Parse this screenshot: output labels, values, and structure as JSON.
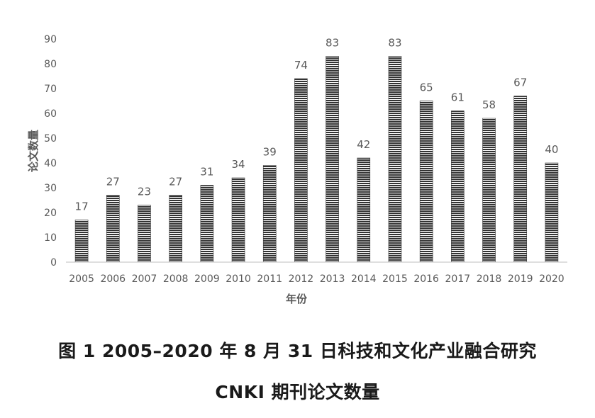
{
  "chart_data": {
    "type": "bar",
    "categories": [
      "2005",
      "2006",
      "2007",
      "2008",
      "2009",
      "2010",
      "2011",
      "2012",
      "2013",
      "2014",
      "2015",
      "2016",
      "2017",
      "2018",
      "2019",
      "2020"
    ],
    "values": [
      17,
      27,
      23,
      27,
      31,
      34,
      39,
      74,
      83,
      42,
      83,
      65,
      61,
      58,
      67,
      40
    ],
    "xlabel": "年份",
    "ylabel": "论文数量",
    "ylim": [
      0,
      90
    ],
    "yticks": [
      0,
      10,
      20,
      30,
      40,
      50,
      60,
      70,
      80,
      90
    ],
    "grid": false,
    "data_labels": true,
    "bar_fill": "horizontal-stripes",
    "bar_color": "#333333",
    "axis_color": "#bfbfbf",
    "text_color": "#595959"
  },
  "caption": {
    "line1": "图 1  2005–2020 年 8 月 31 日科技和文化产业融合研究",
    "line2": "CNKI 期刊论文数量"
  }
}
